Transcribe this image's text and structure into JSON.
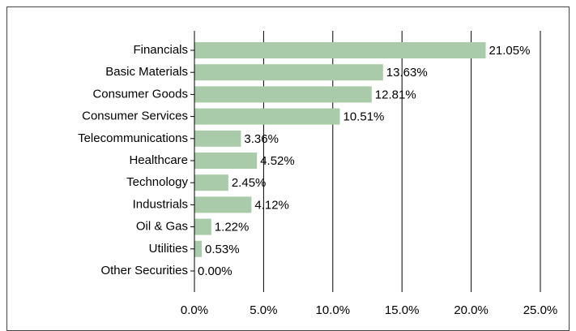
{
  "chart_data": {
    "type": "hbar",
    "categories": [
      "Financials",
      "Basic Materials",
      "Consumer Goods",
      "Consumer Services",
      "Telecommunications",
      "Healthcare",
      "Technology",
      "Industrials",
      "Oil & Gas",
      "Utilities",
      "Other Securities"
    ],
    "values": [
      21.05,
      13.63,
      12.81,
      10.51,
      3.36,
      4.52,
      2.45,
      4.12,
      1.22,
      0.53,
      0.0
    ],
    "value_labels": [
      "21.05%",
      "13.63%",
      "12.81%",
      "10.51%",
      "3.36%",
      "4.52%",
      "2.45%",
      "4.12%",
      "1.22%",
      "0.53%",
      "0.00%"
    ],
    "color": "#a9cba9",
    "xlim": [
      0,
      25
    ],
    "xticks": [
      {
        "value": 0,
        "label": "0.0%"
      },
      {
        "value": 5,
        "label": "5.0%"
      },
      {
        "value": 10,
        "label": "10.0%"
      },
      {
        "value": 15,
        "label": "15.0%"
      },
      {
        "value": 20,
        "label": "20.0%"
      },
      {
        "value": 25,
        "label": "25.0%"
      }
    ],
    "grid": true
  }
}
